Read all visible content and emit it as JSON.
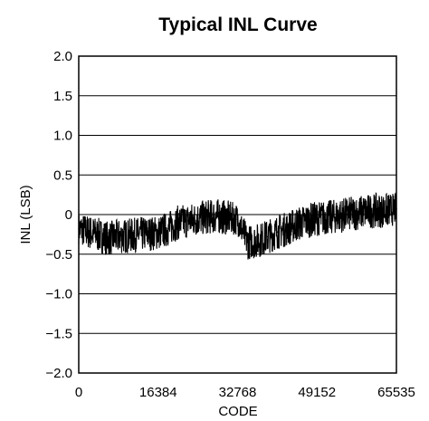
{
  "chart_data": {
    "type": "line",
    "title": "Typical INL Curve",
    "xlabel": "CODE",
    "ylabel": "INL (LSB)",
    "xlim": [
      0,
      65535
    ],
    "ylim": [
      -2.0,
      2.0
    ],
    "x_ticks": [
      0,
      16384,
      32768,
      49152,
      65535
    ],
    "x_tick_labels": [
      "0",
      "16384",
      "32768",
      "49152",
      "65535"
    ],
    "y_ticks": [
      2.0,
      1.5,
      1.0,
      0.5,
      0,
      -0.5,
      -1.0,
      -1.5,
      -2.0
    ],
    "y_tick_labels": [
      "2.0",
      "1.5",
      "1.0",
      "0.5",
      "0",
      "−0.5",
      "−1.0",
      "−1.5",
      "−2.0"
    ],
    "grid": "horizontal",
    "legend": "none",
    "series_color": "#000000",
    "series": [
      {
        "x": [
          0,
          2048,
          4096,
          6144,
          8192,
          10240,
          12288,
          14336,
          16384,
          18432,
          20480,
          22528,
          24576,
          26624,
          28672,
          30720,
          32768,
          34816,
          36864,
          38912,
          40960,
          43008,
          45056,
          47104,
          49152,
          51200,
          53248,
          55296,
          57344,
          59392,
          61440,
          63488,
          65535
        ],
        "y": [
          -0.18,
          -0.22,
          -0.26,
          -0.3,
          -0.28,
          -0.27,
          -0.25,
          -0.24,
          -0.23,
          -0.18,
          -0.1,
          -0.08,
          -0.05,
          -0.03,
          -0.02,
          -0.04,
          -0.06,
          -0.35,
          -0.33,
          -0.28,
          -0.22,
          -0.18,
          -0.12,
          -0.08,
          -0.05,
          -0.04,
          -0.02,
          0.0,
          0.02,
          0.04,
          0.05,
          0.05,
          0.07
        ],
        "band": [
          0.2,
          0.22,
          0.22,
          0.22,
          0.22,
          0.22,
          0.22,
          0.22,
          0.22,
          0.22,
          0.22,
          0.22,
          0.22,
          0.22,
          0.22,
          0.22,
          0.2,
          0.22,
          0.22,
          0.22,
          0.22,
          0.22,
          0.22,
          0.22,
          0.22,
          0.22,
          0.22,
          0.22,
          0.22,
          0.22,
          0.22,
          0.22,
          0.2
        ]
      }
    ]
  }
}
